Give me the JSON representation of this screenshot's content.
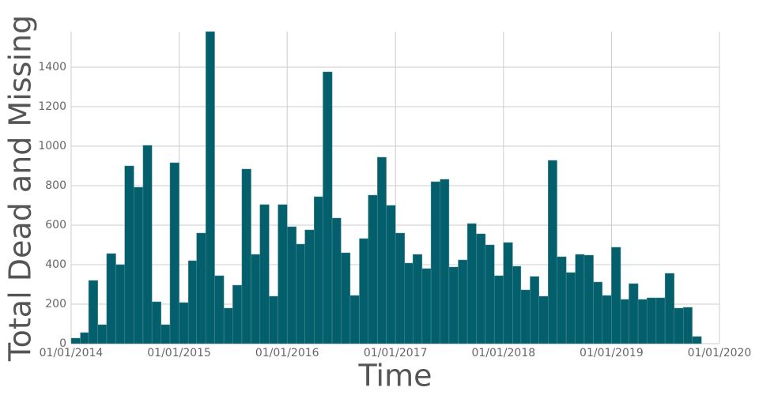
{
  "chart_data": {
    "type": "histogram",
    "xlabel": "Time",
    "ylabel": "Total Dead and Missing",
    "color": "#045f6d",
    "edgecolor": "#5a8f98",
    "grid": true,
    "bins": [
      "2014-01-01",
      "2014-02-01",
      "2014-03-01",
      "2014-04-01",
      "2014-05-01",
      "2014-06-01",
      "2014-07-01",
      "2014-08-01",
      "2014-09-01",
      "2014-10-01",
      "2014-11-01",
      "2014-12-01",
      "2015-01-01",
      "2015-02-01",
      "2015-03-01",
      "2015-04-01",
      "2015-05-01",
      "2015-06-01",
      "2015-07-01",
      "2015-08-01",
      "2015-09-01",
      "2015-10-01",
      "2015-11-01",
      "2015-12-01",
      "2016-01-01",
      "2016-02-01",
      "2016-03-01",
      "2016-04-01",
      "2016-05-01",
      "2016-06-01",
      "2016-07-01",
      "2016-08-01",
      "2016-09-01",
      "2016-10-01",
      "2016-11-01",
      "2016-12-01",
      "2017-01-01",
      "2017-02-01",
      "2017-03-01",
      "2017-04-01",
      "2017-05-01",
      "2017-06-01",
      "2017-07-01",
      "2017-08-01",
      "2017-09-01",
      "2017-10-01",
      "2017-11-01",
      "2017-12-01",
      "2018-01-01",
      "2018-02-01",
      "2018-03-01",
      "2018-04-01",
      "2018-05-01",
      "2018-06-01",
      "2018-07-01",
      "2018-08-01",
      "2018-09-01",
      "2018-10-01",
      "2018-11-01",
      "2018-12-01",
      "2019-01-01",
      "2019-02-01",
      "2019-03-01",
      "2019-04-01",
      "2019-05-01",
      "2019-06-01",
      "2019-07-01",
      "2019-08-01",
      "2019-09-01",
      "2019-10-01",
      "2019-11-01"
    ],
    "values": [
      28,
      56,
      320,
      96,
      456,
      400,
      900,
      792,
      1004,
      212,
      96,
      916,
      208,
      420,
      560,
      1580,
      344,
      180,
      296,
      884,
      452,
      704,
      240,
      704,
      592,
      504,
      576,
      744,
      1376,
      636,
      460,
      244,
      532,
      752,
      944,
      700,
      560,
      408,
      452,
      380,
      820,
      832,
      388,
      424,
      608,
      556,
      500,
      344,
      512,
      392,
      272,
      340,
      240,
      928,
      440,
      360,
      452,
      448,
      312,
      244,
      488,
      224,
      304,
      224,
      232,
      232,
      356,
      180,
      184,
      36
    ],
    "xlim": [
      "2014-01-01",
      "2020-01-01"
    ],
    "xticks": [
      {
        "value": "2014-01-01",
        "label": "01/01/2014"
      },
      {
        "value": "2015-01-01",
        "label": "01/01/2015"
      },
      {
        "value": "2016-01-01",
        "label": "01/01/2016"
      },
      {
        "value": "2017-01-01",
        "label": "01/01/2017"
      },
      {
        "value": "2018-01-01",
        "label": "01/01/2018"
      },
      {
        "value": "2019-01-01",
        "label": "01/01/2019"
      },
      {
        "value": "2020-01-01",
        "label": "01/01/2020"
      }
    ],
    "ylim": [
      0,
      1580
    ],
    "yticks": [
      0,
      200,
      400,
      600,
      800,
      1000,
      1200,
      1400
    ]
  }
}
